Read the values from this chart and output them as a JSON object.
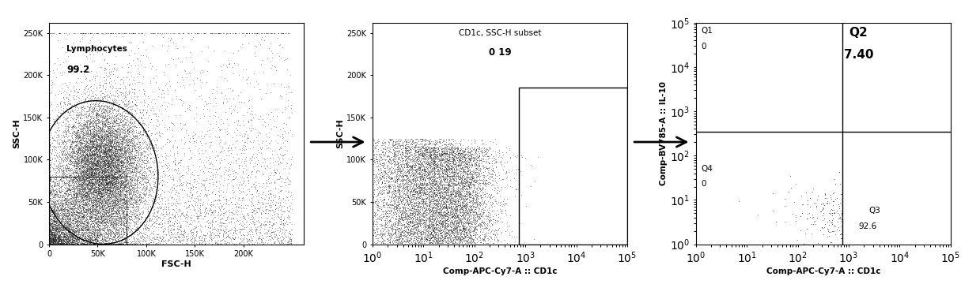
{
  "panel1": {
    "gate_label": "Lymphocytes",
    "gate_value": "99.2",
    "xlabel": "FSC-H",
    "ylabel": "SSC-H",
    "xlim": [
      0,
      262144
    ],
    "ylim": [
      0,
      262144
    ],
    "xticks": [
      0,
      50000,
      100000,
      150000,
      200000
    ],
    "xticklabels": [
      "0",
      "50K",
      "100K",
      "150K",
      "200K"
    ],
    "yticks": [
      0,
      50000,
      100000,
      150000,
      200000,
      250000
    ],
    "yticklabels": [
      "0",
      "50K",
      "100K",
      "150K",
      "200K",
      "250K"
    ]
  },
  "panel2": {
    "title_line1": "CD1c, SSC-H subset",
    "title_line2": "0 19",
    "xlabel": "Comp-APC-Cy7-A :: CD1c",
    "ylabel": "SSC-H",
    "ylim": [
      0,
      262144
    ],
    "yticks": [
      0,
      50000,
      100000,
      150000,
      200000,
      250000
    ],
    "yticklabels": [
      "0",
      "50K",
      "100K",
      "150K",
      "200K",
      "250K"
    ],
    "gate_x": 750,
    "gate_y_top": 185000
  },
  "panel3": {
    "xlabel": "Comp-APC-Cy7-A :: CD1c",
    "ylabel": "Comp-BV785-A :: IL-10",
    "gate_x": 750,
    "gate_y": 350
  },
  "dot_color": "#111111",
  "bg_color": "#ffffff",
  "figure_bg": "#ffffff",
  "arrow_color": "#000000"
}
